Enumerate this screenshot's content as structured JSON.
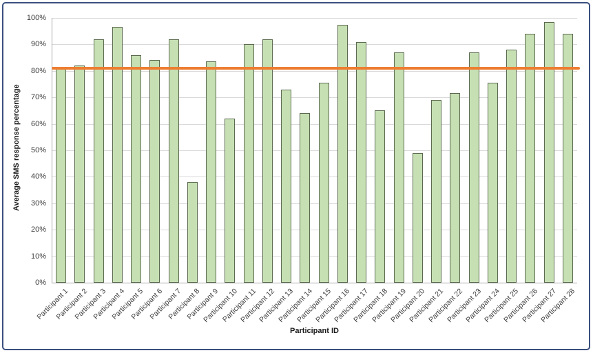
{
  "chart_data": {
    "type": "bar",
    "title": "",
    "xlabel": "Participant ID",
    "ylabel": "Average SMS response percentage",
    "categories": [
      "Participant 1",
      "Participant 2",
      "Participant 3",
      "Participant 4",
      "Participant 5",
      "Participant 6",
      "Participant 7",
      "Participant 8",
      "Participant 9",
      "Participant 10",
      "Participant 11",
      "Participant 12",
      "Participant 13",
      "Participant 14",
      "Participant 15",
      "Participant 16",
      "Participant 17",
      "Participant 18",
      "Participant 19",
      "Participant 20",
      "Participant 21",
      "Participant 22",
      "Participant 23",
      "Participant 24",
      "Participant 25",
      "Participant 26",
      "Participant 27",
      "Participant 28"
    ],
    "values": [
      81,
      82,
      92,
      96.5,
      86,
      84,
      92,
      38,
      83.5,
      62,
      90,
      92,
      73,
      64,
      75.5,
      97.5,
      91,
      65,
      87,
      49,
      69,
      71.5,
      87,
      75.5,
      88,
      94,
      98.5,
      94
    ],
    "ylim": [
      0,
      100
    ],
    "ytick_labels": [
      "0%",
      "10%",
      "20%",
      "30%",
      "40%",
      "50%",
      "60%",
      "70%",
      "80%",
      "90%",
      "100%"
    ],
    "grid": "horizontal",
    "legend": "none",
    "target_line": {
      "value": 81,
      "color": "#ed7d31"
    }
  },
  "colors": {
    "bar_fill": "#c6e0b4",
    "bar_border": "#5c6a50",
    "target_line": "#ed7d31",
    "gridline": "#d9d9d9",
    "axis_line": "#a6a6a6",
    "frame_border": "#3a4f7e",
    "tick_text": "#3f3f3f"
  }
}
